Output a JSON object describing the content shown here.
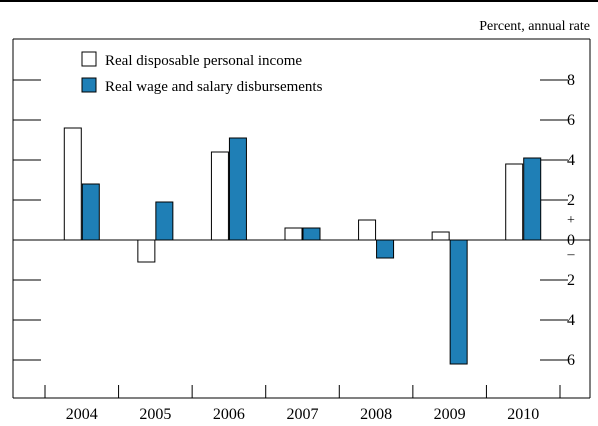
{
  "chart_data": {
    "type": "bar",
    "unit_label": "Percent, annual rate",
    "categories": [
      "2004",
      "2005",
      "2006",
      "2007",
      "2008",
      "2009",
      "2010"
    ],
    "series": [
      {
        "name": "Real disposable personal income",
        "color": "#ffffff",
        "values": [
          5.6,
          -1.1,
          4.4,
          0.6,
          1.0,
          0.4,
          3.8
        ]
      },
      {
        "name": "Real wage and salary disbursements",
        "color": "#1f7fb6",
        "values": [
          2.8,
          1.9,
          5.1,
          0.6,
          -0.9,
          -6.2,
          4.1
        ]
      }
    ],
    "ylim": [
      -7,
      10
    ],
    "yticks": [
      -6,
      -4,
      -2,
      0,
      2,
      4,
      6,
      8
    ],
    "ytick_labels": [
      "6",
      "4",
      "2",
      "0",
      "2",
      "4",
      "6",
      "8"
    ],
    "plus_sign": "+",
    "minus_sign": "–",
    "legend_position": "top-left",
    "grid": false
  }
}
